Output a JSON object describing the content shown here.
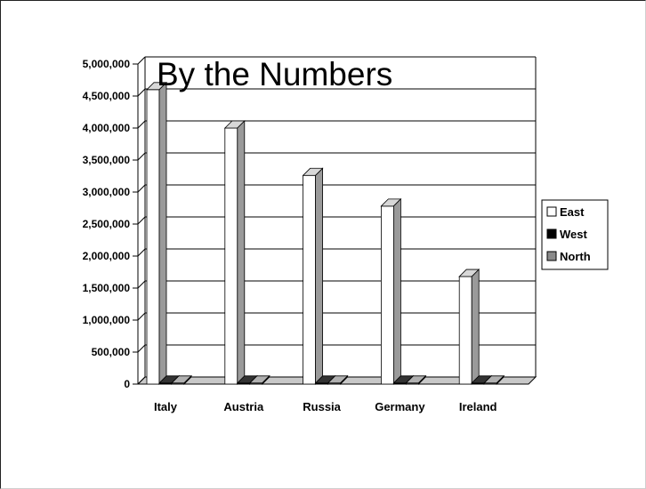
{
  "chart_data": {
    "type": "bar",
    "title": "By the Numbers",
    "xlabel": "",
    "ylabel": "",
    "categories": [
      "Italy",
      "Austria",
      "Russia",
      "Germany",
      "Ireland"
    ],
    "series": [
      {
        "name": "East",
        "values": [
          4600000,
          4000000,
          3260000,
          2780000,
          1680000
        ],
        "color": "#ffffff"
      },
      {
        "name": "West",
        "values": [
          0,
          0,
          0,
          0,
          0
        ],
        "color": "#000000"
      },
      {
        "name": "North",
        "values": [
          0,
          0,
          0,
          0,
          0
        ],
        "color": "#8a8a8a"
      }
    ],
    "ylim": [
      0,
      5000000
    ],
    "yticks": [
      0,
      500000,
      1000000,
      1500000,
      2000000,
      2500000,
      3000000,
      3500000,
      4000000,
      4500000,
      5000000
    ],
    "ytick_labels": [
      "0",
      "500,000",
      "1,000,000",
      "1,500,000",
      "2,000,000",
      "2,500,000",
      "3,000,000",
      "3,500,000",
      "4,000,000",
      "4,500,000",
      "5,000,000"
    ],
    "grid": true,
    "legend_position": "right",
    "style": "3d-clustered-column"
  }
}
